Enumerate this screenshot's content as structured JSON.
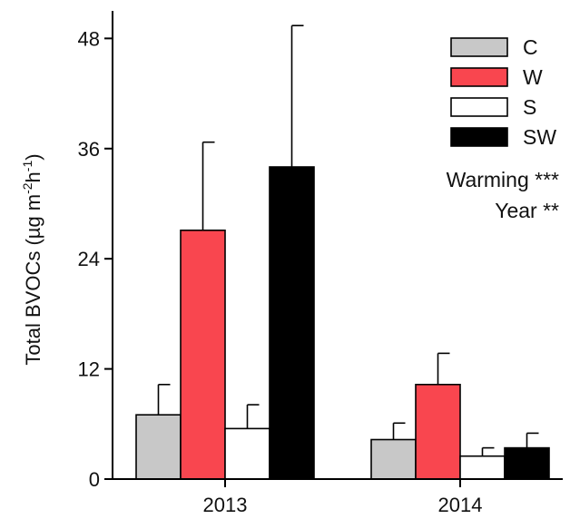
{
  "chart_data": {
    "type": "bar",
    "categories": [
      "2013",
      "2014"
    ],
    "ylabel": {
      "main": "Total BVOCs (µg m",
      "exp1": "-2",
      "mid": "h",
      "exp2": "-1",
      "end": ")"
    },
    "ylim": [
      0,
      51
    ],
    "yticks": [
      0,
      12,
      24,
      36,
      48
    ],
    "legend_position": "top-right",
    "series": [
      {
        "name": "C",
        "color": "#c8c8c8",
        "values": [
          7.0,
          4.3
        ],
        "errors": [
          3.3,
          1.8
        ]
      },
      {
        "name": "W",
        "color": "#f9464f",
        "values": [
          27.1,
          10.3
        ],
        "errors": [
          9.6,
          3.4
        ]
      },
      {
        "name": "S",
        "color": "#ffffff",
        "values": [
          5.5,
          2.5
        ],
        "errors": [
          2.6,
          0.9
        ]
      },
      {
        "name": "SW",
        "color": "#000000",
        "values": [
          34.0,
          3.4
        ],
        "errors": [
          15.4,
          1.6
        ]
      }
    ],
    "annotations": [
      "Warming ***",
      "Year **"
    ]
  }
}
